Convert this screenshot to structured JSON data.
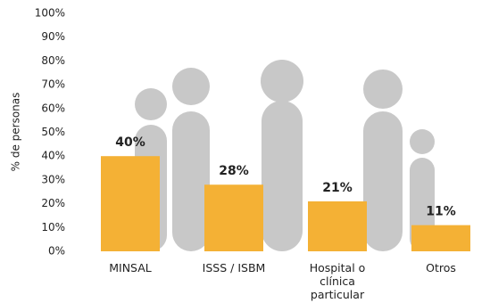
{
  "chart_data": {
    "type": "bar",
    "y_label": "% de personas",
    "categories": [
      "MINSAL",
      "ISSS / ISBM",
      "Hospital o clínica particular",
      "Otros"
    ],
    "values": [
      40,
      28,
      21,
      11
    ],
    "value_labels": [
      "40%",
      "28%",
      "21%",
      "11%"
    ],
    "color": "#f4b135",
    "ylim": [
      0,
      100
    ],
    "yticks": [
      {
        "value": 0,
        "label": "0%"
      },
      {
        "value": 10,
        "label": "10%"
      },
      {
        "value": 20,
        "label": "20%"
      },
      {
        "value": 30,
        "label": "30%"
      },
      {
        "value": 40,
        "label": "40%"
      },
      {
        "value": 50,
        "label": "50%"
      },
      {
        "value": 60,
        "label": "60%"
      },
      {
        "value": 70,
        "label": "70%"
      },
      {
        "value": 80,
        "label": "80%"
      },
      {
        "value": 90,
        "label": "90%"
      },
      {
        "value": 100,
        "label": "100%"
      }
    ],
    "grid": false
  }
}
